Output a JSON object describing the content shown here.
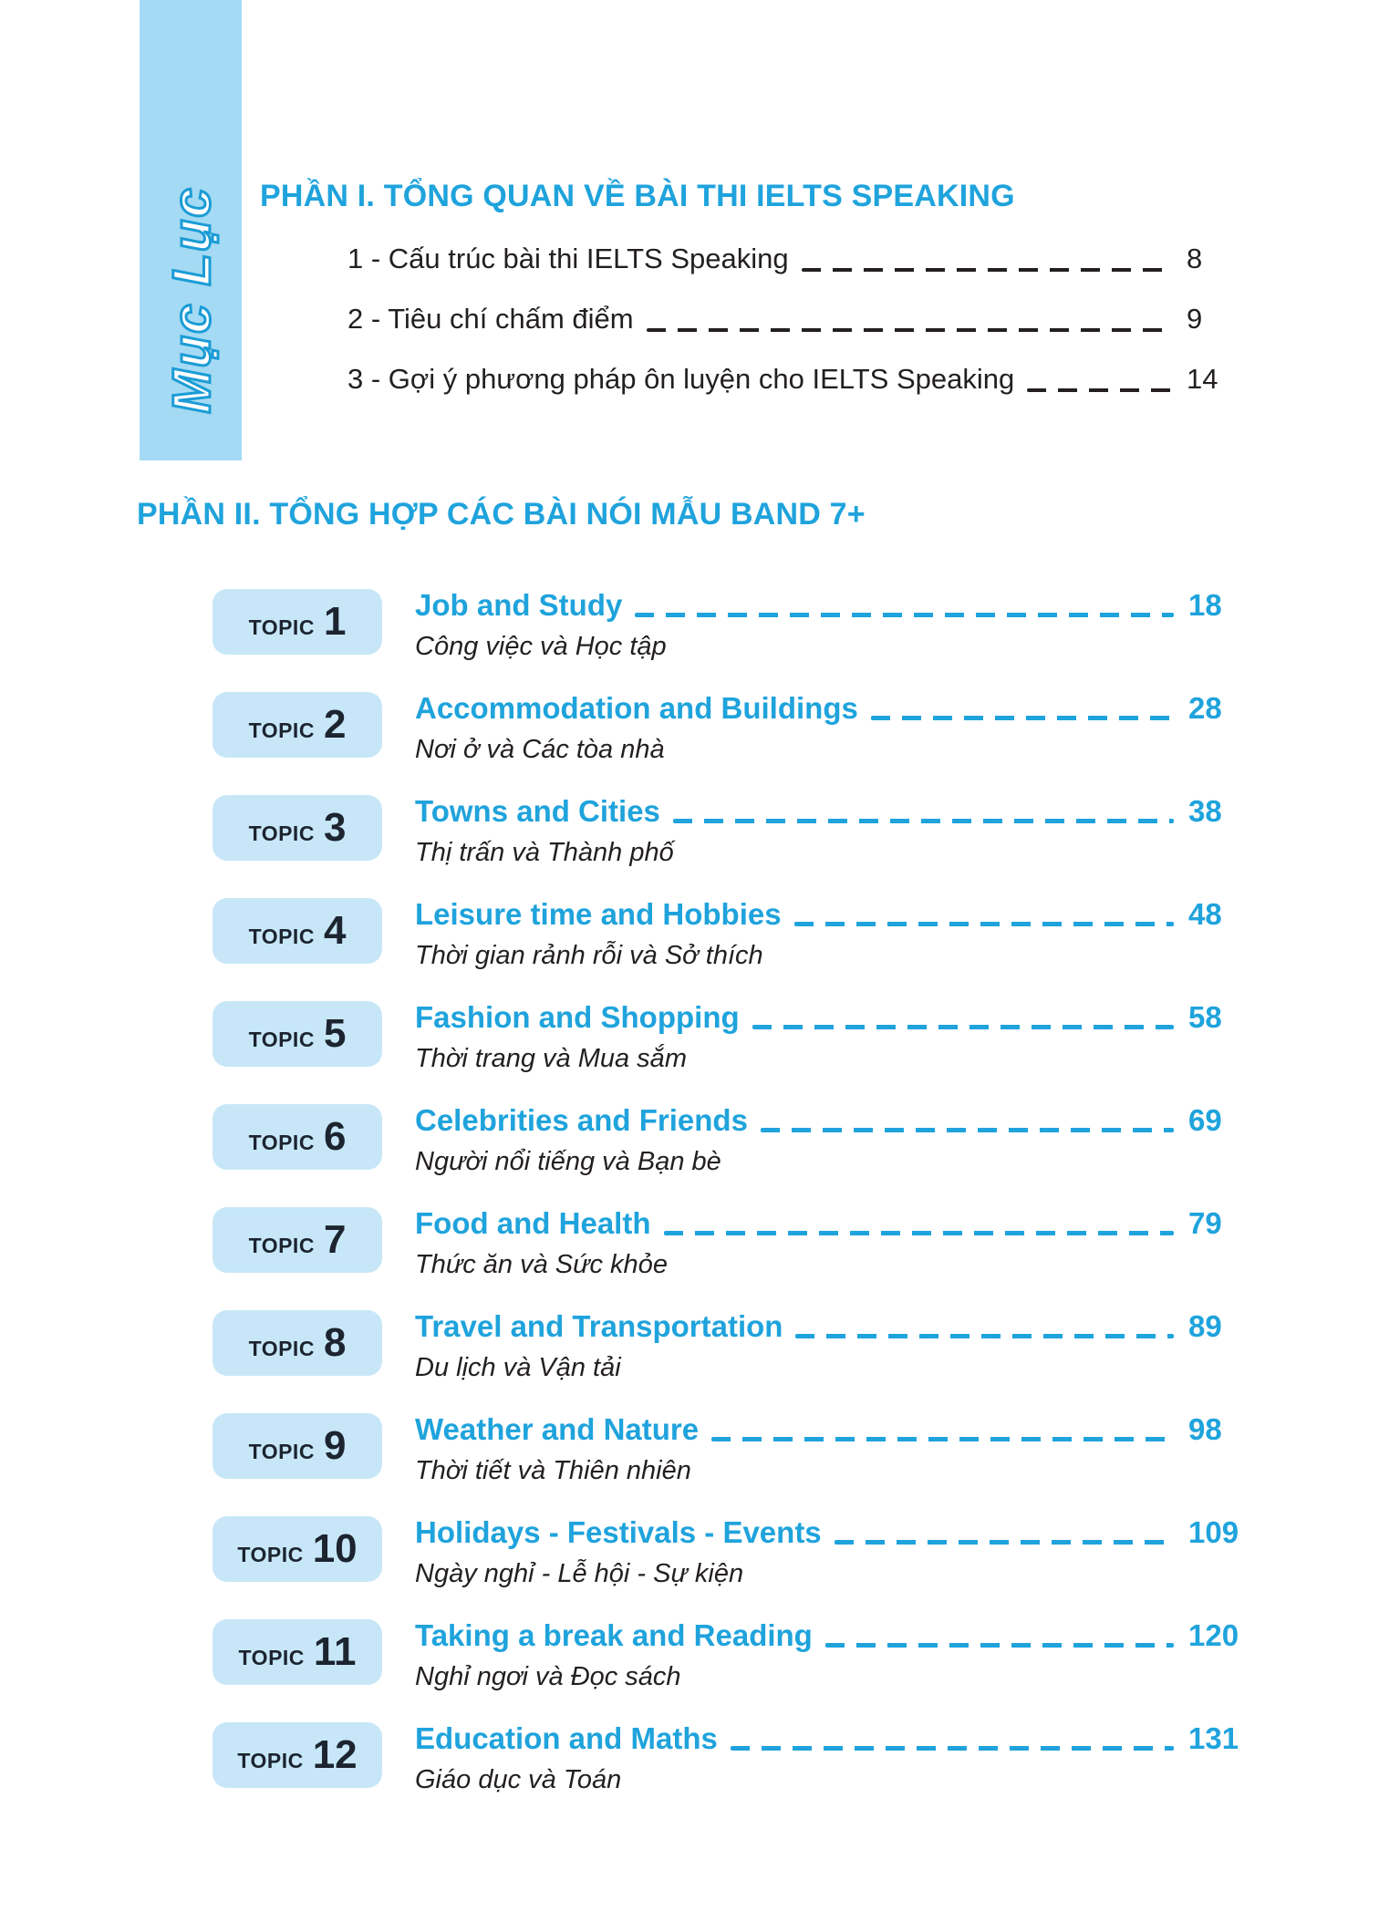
{
  "sidebar": {
    "label": "Mục Lục"
  },
  "part1": {
    "title": "PHẦN I. TỔNG QUAN VỀ BÀI THI IELTS SPEAKING",
    "items": [
      {
        "label": "1 - Cấu trúc bài thi IELTS Speaking",
        "page": "8"
      },
      {
        "label": "2 - Tiêu chí chấm điểm",
        "page": "9"
      },
      {
        "label": "3 - Gợi ý phương pháp ôn luyện cho IELTS Speaking",
        "page": "14"
      }
    ]
  },
  "part2": {
    "title": "PHẦN II. TỔNG HỢP CÁC BÀI NÓI MẪU BAND 7+",
    "topic_word": "TOPIC",
    "topics": [
      {
        "number": "1",
        "title": "Job and Study",
        "subtitle": "Công việc và Học tập",
        "page": "18"
      },
      {
        "number": "2",
        "title": "Accommodation and Buildings",
        "subtitle": "Nơi ở và Các tòa nhà",
        "page": "28"
      },
      {
        "number": "3",
        "title": "Towns and Cities",
        "subtitle": "Thị trấn và Thành phố",
        "page": "38"
      },
      {
        "number": "4",
        "title": "Leisure time and Hobbies",
        "subtitle": "Thời gian rảnh rỗi và Sở thích",
        "page": "48"
      },
      {
        "number": "5",
        "title": "Fashion and Shopping",
        "subtitle": "Thời trang và Mua sắm",
        "page": "58"
      },
      {
        "number": "6",
        "title": "Celebrities and Friends",
        "subtitle": "Người nổi tiếng và Bạn bè",
        "page": "69"
      },
      {
        "number": "7",
        "title": "Food and Health",
        "subtitle": "Thức ăn và Sức khỏe",
        "page": "79"
      },
      {
        "number": "8",
        "title": "Travel and Transportation",
        "subtitle": "Du lịch và Vận tải",
        "page": "89"
      },
      {
        "number": "9",
        "title": "Weather and Nature",
        "subtitle": "Thời tiết và Thiên nhiên",
        "page": "98"
      },
      {
        "number": "10",
        "title": "Holidays - Festivals - Events",
        "subtitle": "Ngày nghỉ - Lễ hội - Sự kiện",
        "page": "109"
      },
      {
        "number": "11",
        "title": "Taking a break and Reading",
        "subtitle": "Nghỉ ngơi và Đọc sách",
        "page": "120"
      },
      {
        "number": "12",
        "title": "Education and Maths",
        "subtitle": "Giáo dục và Toán",
        "page": "131"
      }
    ]
  },
  "colors": {
    "accent_blue": "#1FA3DC",
    "stroke_blue": "#1B9CD6",
    "band_blue": "#A4DAF3",
    "badge_blue": "#C7E7F8",
    "badge_ink": "#1C2430",
    "ink": "#231F20"
  }
}
